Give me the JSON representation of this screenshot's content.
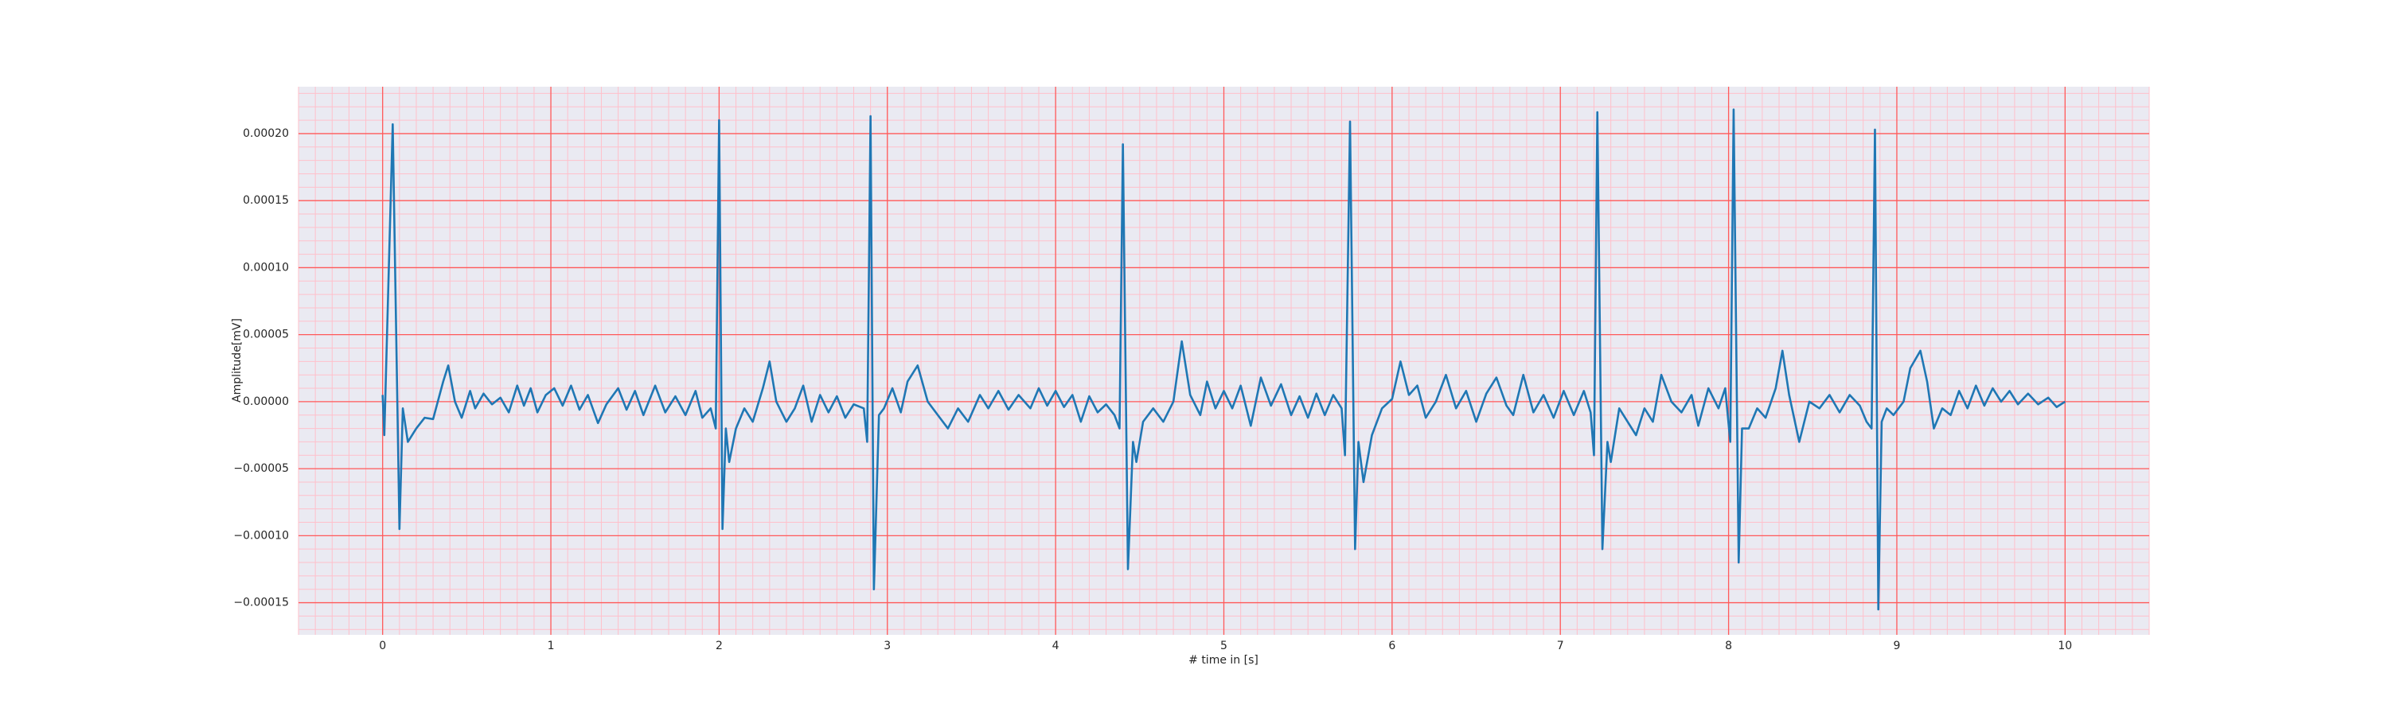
{
  "chart_data": {
    "type": "line",
    "xlabel": "# time in [s]",
    "ylabel": "Amplitude[mV]",
    "color": "#1f77b4",
    "grid": true,
    "xlim": [
      -0.5,
      10.5
    ],
    "ylim": [
      -0.000174,
      0.000235
    ],
    "xticks": [
      0,
      1,
      2,
      3,
      4,
      5,
      6,
      7,
      8,
      9,
      10
    ],
    "yticks": [
      {
        "value": -0.00015,
        "label": "−0.00015"
      },
      {
        "value": -0.0001,
        "label": "−0.00010"
      },
      {
        "value": -5e-05,
        "label": "−0.00005"
      },
      {
        "value": 0,
        "label": "0.00000"
      },
      {
        "value": 5e-05,
        "label": "0.00005"
      },
      {
        "value": 0.0001,
        "label": "0.00010"
      },
      {
        "value": 0.00015,
        "label": "0.00015"
      },
      {
        "value": 0.0002,
        "label": "0.00020"
      }
    ],
    "x": [
      0,
      0.01,
      0.06,
      0.1,
      0.12,
      0.15,
      0.2,
      0.25,
      0.3,
      0.36,
      0.39,
      0.43,
      0.47,
      0.52,
      0.55,
      0.6,
      0.65,
      0.7,
      0.75,
      0.8,
      0.84,
      0.88,
      0.92,
      0.97,
      1.02,
      1.07,
      1.12,
      1.17,
      1.22,
      1.28,
      1.33,
      1.4,
      1.45,
      1.5,
      1.55,
      1.62,
      1.68,
      1.74,
      1.8,
      1.86,
      1.9,
      1.95,
      1.98,
      2.0,
      2.02,
      2.04,
      2.06,
      2.1,
      2.15,
      2.2,
      2.26,
      2.3,
      2.34,
      2.4,
      2.45,
      2.5,
      2.55,
      2.6,
      2.65,
      2.7,
      2.75,
      2.8,
      2.86,
      2.88,
      2.9,
      2.92,
      2.95,
      2.98,
      3.03,
      3.08,
      3.12,
      3.18,
      3.24,
      3.3,
      3.36,
      3.42,
      3.48,
      3.55,
      3.6,
      3.66,
      3.72,
      3.78,
      3.85,
      3.9,
      3.95,
      4.0,
      4.05,
      4.1,
      4.15,
      4.2,
      4.25,
      4.3,
      4.35,
      4.38,
      4.4,
      4.43,
      4.46,
      4.48,
      4.52,
      4.58,
      4.64,
      4.7,
      4.75,
      4.8,
      4.86,
      4.9,
      4.95,
      5.0,
      5.05,
      5.1,
      5.16,
      5.22,
      5.28,
      5.34,
      5.4,
      5.45,
      5.5,
      5.55,
      5.6,
      5.65,
      5.7,
      5.72,
      5.75,
      5.78,
      5.8,
      5.83,
      5.88,
      5.94,
      6.0,
      6.05,
      6.1,
      6.15,
      6.2,
      6.26,
      6.32,
      6.38,
      6.44,
      6.5,
      6.56,
      6.62,
      6.68,
      6.72,
      6.78,
      6.84,
      6.9,
      6.96,
      7.02,
      7.08,
      7.14,
      7.18,
      7.2,
      7.22,
      7.25,
      7.28,
      7.3,
      7.35,
      7.4,
      7.45,
      7.5,
      7.55,
      7.6,
      7.66,
      7.72,
      7.78,
      7.82,
      7.88,
      7.94,
      7.98,
      8.01,
      8.03,
      8.06,
      8.08,
      8.12,
      8.17,
      8.22,
      8.28,
      8.32,
      8.36,
      8.42,
      8.48,
      8.54,
      8.6,
      8.66,
      8.72,
      8.78,
      8.82,
      8.85,
      8.87,
      8.89,
      8.91,
      8.94,
      8.98,
      9.04,
      9.08,
      9.14,
      9.18,
      9.22,
      9.27,
      9.32,
      9.37,
      9.42,
      9.47,
      9.52,
      9.57,
      9.62,
      9.67,
      9.72,
      9.78,
      9.84,
      9.9,
      9.95,
      10.0
    ],
    "values": [
      5e-06,
      -2.5e-05,
      0.000207,
      -9.5e-05,
      -5e-06,
      -3e-05,
      -2e-05,
      -1.2e-05,
      -1.3e-05,
      1.5e-05,
      2.7e-05,
      0,
      -1.2e-05,
      8e-06,
      -5e-06,
      6e-06,
      -2e-06,
      3e-06,
      -8e-06,
      1.2e-05,
      -3e-06,
      1e-05,
      -8e-06,
      5e-06,
      1e-05,
      -3e-06,
      1.2e-05,
      -6e-06,
      5e-06,
      -1.6e-05,
      -2e-06,
      1e-05,
      -6e-06,
      8e-06,
      -1e-05,
      1.2e-05,
      -8e-06,
      4e-06,
      -1e-05,
      8e-06,
      -1.2e-05,
      -5e-06,
      -2e-05,
      0.00021,
      -9.5e-05,
      -2e-05,
      -4.5e-05,
      -2e-05,
      -5e-06,
      -1.5e-05,
      1e-05,
      3e-05,
      0,
      -1.5e-05,
      -5e-06,
      1.2e-05,
      -1.5e-05,
      5e-06,
      -8e-06,
      4e-06,
      -1.2e-05,
      -2e-06,
      -5e-06,
      -3e-05,
      0.000213,
      -0.00014,
      -1e-05,
      -5e-06,
      1e-05,
      -8e-06,
      1.5e-05,
      2.7e-05,
      0,
      -1e-05,
      -2e-05,
      -5e-06,
      -1.5e-05,
      5e-06,
      -5e-06,
      8e-06,
      -6e-06,
      5e-06,
      -5e-06,
      1e-05,
      -3e-06,
      8e-06,
      -4e-06,
      5e-06,
      -1.5e-05,
      4e-06,
      -8e-06,
      -2e-06,
      -1e-05,
      -2e-05,
      0.000192,
      -0.000125,
      -3e-05,
      -4.5e-05,
      -1.5e-05,
      -5e-06,
      -1.5e-05,
      0,
      4.5e-05,
      5e-06,
      -1e-05,
      1.5e-05,
      -5e-06,
      8e-06,
      -5e-06,
      1.2e-05,
      -1.8e-05,
      1.8e-05,
      -3e-06,
      1.3e-05,
      -1e-05,
      4e-06,
      -1.2e-05,
      6e-06,
      -1e-05,
      5e-06,
      -5e-06,
      -4e-05,
      0.000209,
      -0.00011,
      -3e-05,
      -6e-05,
      -2.5e-05,
      -5e-06,
      2e-06,
      3e-05,
      5e-06,
      1.2e-05,
      -1.2e-05,
      0,
      2e-05,
      -5e-06,
      8e-06,
      -1.5e-05,
      6e-06,
      1.8e-05,
      -3e-06,
      -1e-05,
      2e-05,
      -8e-06,
      5e-06,
      -1.2e-05,
      8e-06,
      -1e-05,
      8e-06,
      -8e-06,
      -4e-05,
      0.000216,
      -0.00011,
      -3e-05,
      -4.5e-05,
      -5e-06,
      -1.5e-05,
      -2.5e-05,
      -5e-06,
      -1.5e-05,
      2e-05,
      0,
      -8e-06,
      5e-06,
      -1.8e-05,
      1e-05,
      -5e-06,
      1e-05,
      -3e-05,
      0.000218,
      -0.00012,
      -2e-05,
      -2e-05,
      -5e-06,
      -1.2e-05,
      1e-05,
      3.8e-05,
      5e-06,
      -3e-05,
      0,
      -5e-06,
      5e-06,
      -8e-06,
      5e-06,
      -3e-06,
      -1.5e-05,
      -2e-05,
      0.000203,
      -0.000155,
      -1.5e-05,
      -5e-06,
      -1e-05,
      0,
      2.5e-05,
      3.8e-05,
      1.5e-05,
      -2e-05,
      -5e-06,
      -1e-05,
      8e-06,
      -5e-06,
      1.2e-05,
      -3e-06,
      1e-05,
      0,
      8e-06,
      -2e-06,
      6e-06,
      -2e-06,
      3e-06,
      -4e-06,
      0
    ]
  }
}
